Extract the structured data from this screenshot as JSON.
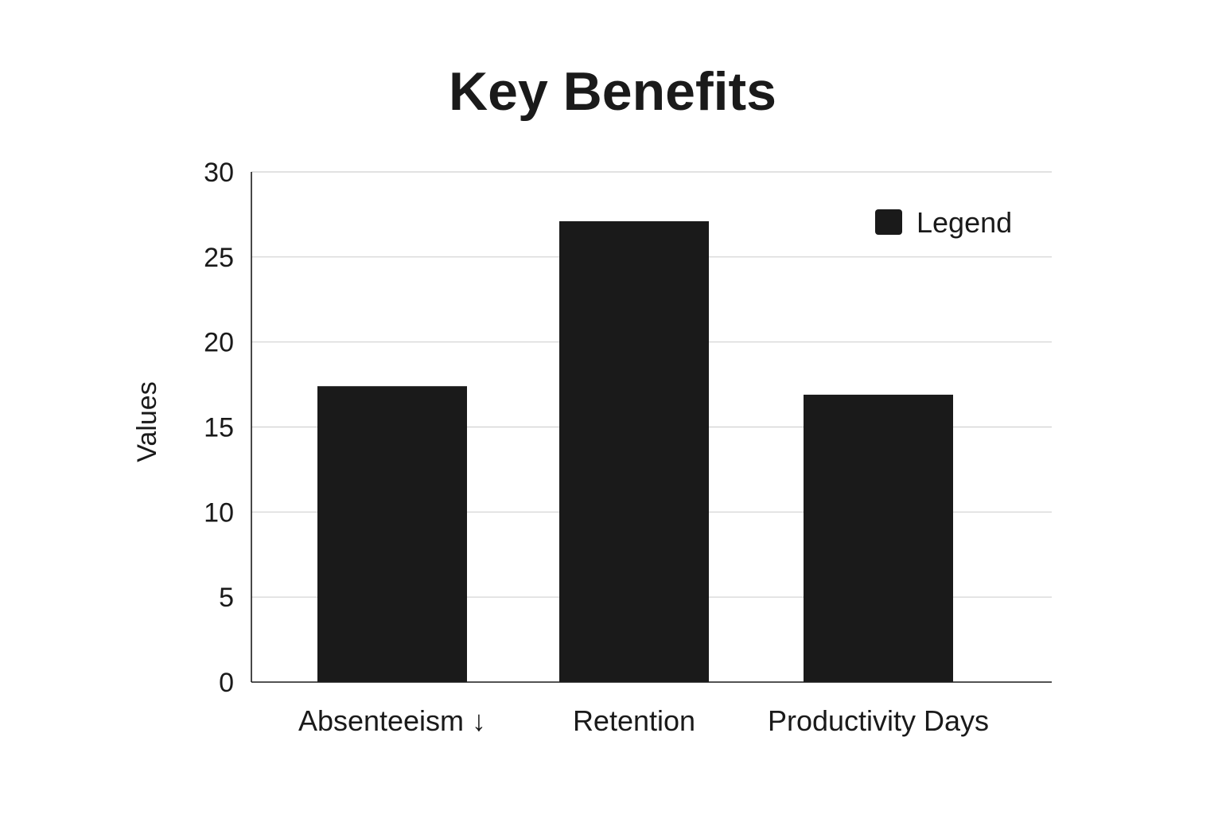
{
  "chart_data": {
    "type": "bar",
    "title": "Key Benefits",
    "xlabel": "",
    "ylabel": "Values",
    "categories": [
      "Absenteeism ↓",
      "Retention",
      "Productivity Days"
    ],
    "series": [
      {
        "name": "Legend",
        "values": [
          17.4,
          27.1,
          16.9
        ]
      }
    ],
    "ylim": [
      0,
      30
    ],
    "yticks": [
      "0",
      "5",
      "10",
      "15",
      "20",
      "25",
      "30"
    ],
    "grid": true,
    "legend_position": "top-right",
    "colors": {
      "bar": "#1a1a1a",
      "grid": "#d0d0d0",
      "axis": "#1a1a1a"
    }
  }
}
